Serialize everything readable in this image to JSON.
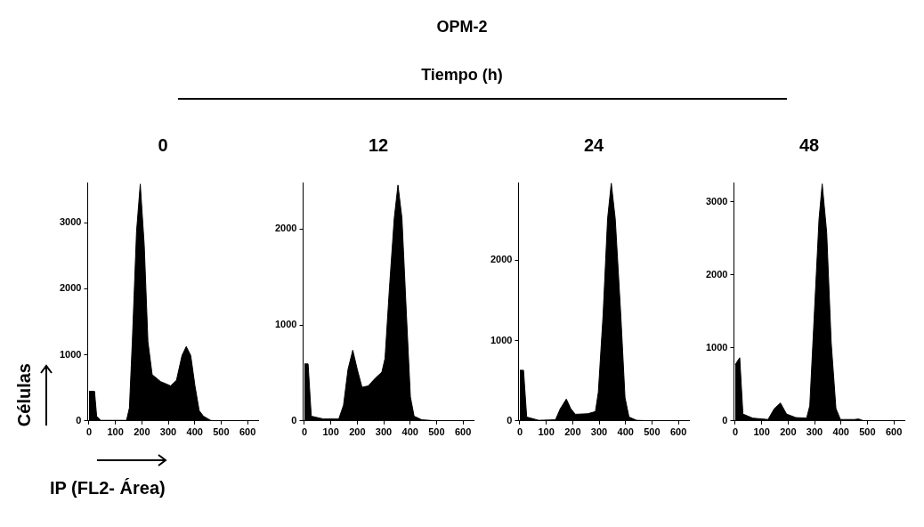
{
  "chart_data": [
    {
      "type": "area",
      "title": "0",
      "xlabel": "IP (FL2- Área)",
      "ylabel": "Células",
      "annotations": [
        "OPM-2",
        "Tiempo (h)"
      ],
      "color": "#000000",
      "xlim": [
        -5,
        640
      ],
      "xticks": [
        0,
        100,
        200,
        300,
        400,
        500,
        600
      ],
      "ylim": [
        0,
        3600
      ],
      "yticks": [
        0,
        1000,
        2000,
        3000
      ],
      "x": [
        0,
        21,
        29,
        45,
        142,
        153,
        164,
        180,
        194,
        209,
        223,
        239,
        271,
        309,
        331,
        352,
        368,
        385,
        401,
        417,
        433,
        460,
        476,
        600
      ],
      "values": [
        448,
        448,
        71,
        8,
        8,
        197,
        1200,
        2870,
        3585,
        2660,
        1200,
        700,
        595,
        530,
        615,
        990,
        1125,
        990,
        530,
        155,
        71,
        8,
        0,
        0
      ]
    },
    {
      "type": "area",
      "title": "12",
      "color": "#000000",
      "xlim": [
        -5,
        640
      ],
      "xticks": [
        0,
        100,
        200,
        300,
        400,
        500,
        600
      ],
      "ylim": [
        0,
        2480
      ],
      "yticks": [
        0,
        1000,
        2000
      ],
      "x": [
        0,
        14,
        26,
        72,
        130,
        148,
        165,
        183,
        200,
        218,
        241,
        270,
        293,
        305,
        322,
        340,
        354,
        369,
        386,
        401,
        415,
        444,
        502,
        600
      ],
      "values": [
        594,
        594,
        49,
        20,
        20,
        164,
        537,
        737,
        537,
        350,
        364,
        450,
        508,
        651,
        1397,
        2115,
        2459,
        2115,
        1110,
        250,
        49,
        11,
        0,
        0
      ]
    },
    {
      "type": "area",
      "title": "24",
      "color": "#000000",
      "xlim": [
        -5,
        640
      ],
      "xticks": [
        0,
        100,
        200,
        300,
        400,
        500,
        600
      ],
      "ylim": [
        0,
        2960
      ],
      "yticks": [
        0,
        1000,
        2000
      ],
      "x": [
        0,
        14,
        26,
        72,
        135,
        153,
        176,
        193,
        210,
        257,
        286,
        297,
        315,
        332,
        346,
        361,
        382,
        398,
        413,
        442,
        502,
        600
      ],
      "values": [
        630,
        630,
        48,
        7,
        14,
        151,
        271,
        151,
        82,
        89,
        116,
        356,
        1315,
        2514,
        2959,
        2514,
        1315,
        288,
        48,
        7,
        0,
        0
      ]
    },
    {
      "type": "area",
      "title": "48",
      "color": "#000000",
      "xlim": [
        -5,
        640
      ],
      "xticks": [
        0,
        100,
        200,
        300,
        400,
        500,
        600
      ],
      "ylim": [
        0,
        3260
      ],
      "yticks": [
        0,
        1000,
        2000,
        3000
      ],
      "x": [
        0,
        17,
        29,
        66,
        124,
        148,
        171,
        194,
        229,
        270,
        282,
        299,
        317,
        329,
        346,
        363,
        381,
        398,
        450,
        467,
        484,
        600
      ],
      "values": [
        772,
        866,
        94,
        38,
        19,
        169,
        245,
        94,
        45,
        38,
        207,
        1449,
        2766,
        3248,
        2578,
        1073,
        169,
        19,
        19,
        26,
        4,
        0
      ]
    }
  ]
}
